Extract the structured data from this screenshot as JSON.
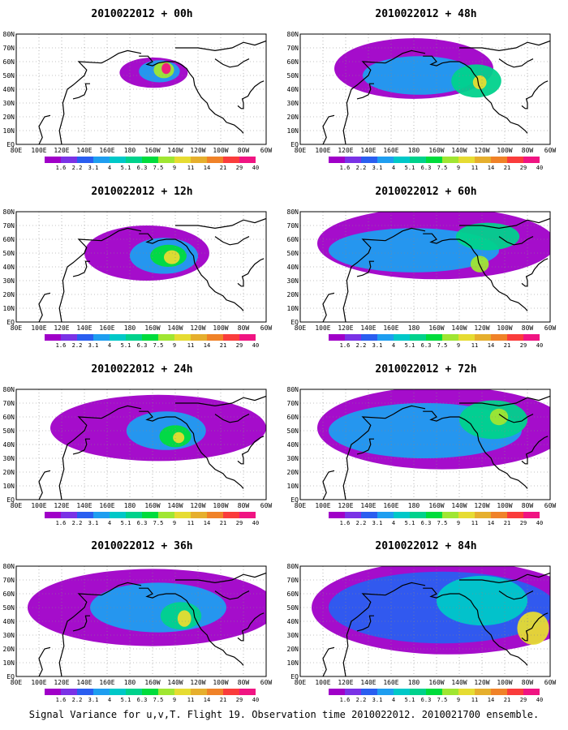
{
  "footer": "Signal Variance for u,v,T. Flight 19. Observation time 2010022012. 2010021700 ensemble.",
  "chart_data": {
    "type": "heatmap",
    "x_ticks": [
      "80E",
      "100E",
      "120E",
      "140E",
      "160E",
      "180",
      "160W",
      "140W",
      "120W",
      "100W",
      "80W",
      "60W"
    ],
    "y_ticks": [
      "EQ",
      "10N",
      "20N",
      "30N",
      "40N",
      "50N",
      "60N",
      "70N",
      "80N"
    ],
    "colorbar_levels": [
      "1.6",
      "2.2",
      "3.1",
      "4",
      "5.1",
      "6.3",
      "7.5",
      "9",
      "11",
      "14",
      "21",
      "29",
      "40"
    ],
    "colorbar_colors": [
      "#a000c8",
      "#7a32e6",
      "#2a5ef0",
      "#1e9ef0",
      "#00c8c8",
      "#00d28c",
      "#00dc3c",
      "#a0e632",
      "#e6dc32",
      "#e6af2d",
      "#f08228",
      "#fa3c3c",
      "#f01482"
    ],
    "panels": [
      {
        "title": "2010022012 + 00h",
        "blobs": [
          {
            "lon": 201,
            "lat": 52,
            "rx": 30,
            "ry": 11,
            "level": 0
          },
          {
            "lon": 206,
            "lat": 53,
            "rx": 18,
            "ry": 8,
            "level": 3
          },
          {
            "lon": 210,
            "lat": 54,
            "rx": 9,
            "ry": 6,
            "level": 7
          },
          {
            "lon": 212,
            "lat": 55,
            "rx": 4,
            "ry": 4,
            "level": 12
          }
        ]
      },
      {
        "title": "2010022012 + 48h",
        "blobs": [
          {
            "lon": 180,
            "lat": 55,
            "rx": 70,
            "ry": 22,
            "level": 0
          },
          {
            "lon": 185,
            "lat": 50,
            "rx": 50,
            "ry": 14,
            "level": 3
          },
          {
            "lon": 235,
            "lat": 46,
            "rx": 22,
            "ry": 12,
            "level": 5
          },
          {
            "lon": 238,
            "lat": 45,
            "rx": 6,
            "ry": 5,
            "level": 8
          }
        ]
      },
      {
        "title": "2010022012 + 12h",
        "blobs": [
          {
            "lon": 195,
            "lat": 50,
            "rx": 55,
            "ry": 20,
            "level": 0
          },
          {
            "lon": 210,
            "lat": 48,
            "rx": 30,
            "ry": 13,
            "level": 3
          },
          {
            "lon": 214,
            "lat": 48,
            "rx": 16,
            "ry": 8,
            "level": 6
          },
          {
            "lon": 217,
            "lat": 47,
            "rx": 7,
            "ry": 5,
            "level": 8
          }
        ]
      },
      {
        "title": "2010022012 + 60h",
        "blobs": [
          {
            "lon": 200,
            "lat": 57,
            "rx": 105,
            "ry": 26,
            "level": 0
          },
          {
            "lon": 180,
            "lat": 52,
            "rx": 75,
            "ry": 16,
            "level": 3
          },
          {
            "lon": 245,
            "lat": 62,
            "rx": 28,
            "ry": 10,
            "level": 5
          },
          {
            "lon": 238,
            "lat": 42,
            "rx": 8,
            "ry": 6,
            "level": 7
          }
        ]
      },
      {
        "title": "2010022012 + 24h",
        "blobs": [
          {
            "lon": 205,
            "lat": 52,
            "rx": 95,
            "ry": 24,
            "level": 0
          },
          {
            "lon": 212,
            "lat": 50,
            "rx": 35,
            "ry": 14,
            "level": 3
          },
          {
            "lon": 220,
            "lat": 46,
            "rx": 14,
            "ry": 8,
            "level": 6
          },
          {
            "lon": 223,
            "lat": 45,
            "rx": 5,
            "ry": 4,
            "level": 8
          }
        ]
      },
      {
        "title": "2010022012 + 72h",
        "blobs": [
          {
            "lon": 205,
            "lat": 52,
            "rx": 110,
            "ry": 30,
            "level": 0
          },
          {
            "lon": 190,
            "lat": 50,
            "rx": 85,
            "ry": 20,
            "level": 3
          },
          {
            "lon": 250,
            "lat": 58,
            "rx": 30,
            "ry": 14,
            "level": 5
          },
          {
            "lon": 255,
            "lat": 60,
            "rx": 8,
            "ry": 6,
            "level": 7
          }
        ]
      },
      {
        "title": "2010022012 + 36h",
        "blobs": [
          {
            "lon": 200,
            "lat": 50,
            "rx": 110,
            "ry": 28,
            "level": 0
          },
          {
            "lon": 205,
            "lat": 50,
            "rx": 60,
            "ry": 18,
            "level": 3
          },
          {
            "lon": 225,
            "lat": 44,
            "rx": 18,
            "ry": 10,
            "level": 5
          },
          {
            "lon": 228,
            "lat": 42,
            "rx": 6,
            "ry": 6,
            "level": 8
          }
        ]
      },
      {
        "title": "2010022012 + 84h",
        "blobs": [
          {
            "lon": 210,
            "lat": 50,
            "rx": 120,
            "ry": 34,
            "level": 0
          },
          {
            "lon": 205,
            "lat": 50,
            "rx": 100,
            "ry": 26,
            "level": 2
          },
          {
            "lon": 240,
            "lat": 55,
            "rx": 40,
            "ry": 18,
            "level": 4
          },
          {
            "lon": 285,
            "lat": 35,
            "rx": 14,
            "ry": 12,
            "level": 8
          }
        ]
      }
    ]
  }
}
